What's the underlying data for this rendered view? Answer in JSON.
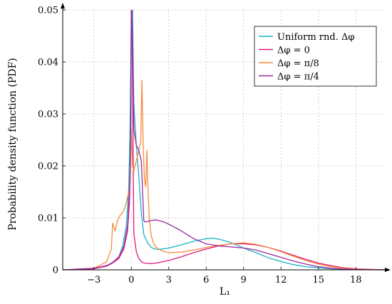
{
  "chart_data": {
    "type": "line",
    "xlabel": "L₁",
    "ylabel": "Probability density function (PDF)",
    "xlim": [
      -5.5,
      20.5
    ],
    "ylim": [
      0,
      0.05
    ],
    "xticks": [
      -3,
      0,
      3,
      6,
      9,
      12,
      15,
      18
    ],
    "xtick_labels": [
      "−3",
      "0",
      "3",
      "6",
      "9",
      "12",
      "15",
      "18"
    ],
    "yticks": [
      0,
      0.01,
      0.02,
      0.03,
      0.04,
      0.05
    ],
    "ytick_labels": [
      "0",
      "0.01",
      "0.02",
      "0.03",
      "0.04",
      "0.05"
    ],
    "grid": true,
    "legend_position": "top-right",
    "series": [
      {
        "name": "Uniform rnd. Δφ",
        "color": "#17b3c9",
        "x": [
          -5.5,
          -3,
          -2,
          -1.5,
          -1,
          -0.7,
          -0.4,
          -0.2,
          -0.1,
          0,
          0.1,
          0.2,
          0.4,
          0.6,
          0.8,
          1,
          1.3,
          1.6,
          2,
          2.5,
          3,
          4,
          5,
          6,
          6.5,
          7,
          7.5,
          8,
          9,
          10,
          11,
          12,
          13,
          14,
          15,
          16,
          17,
          18,
          19,
          20.5
        ],
        "y": [
          0,
          0.0002,
          0.0008,
          0.0014,
          0.0025,
          0.0045,
          0.0085,
          0.016,
          0.028,
          0.05,
          0.05,
          0.032,
          0.024,
          0.018,
          0.011,
          0.0068,
          0.0052,
          0.0043,
          0.0039,
          0.004,
          0.0042,
          0.0048,
          0.0055,
          0.006,
          0.0061,
          0.0059,
          0.0056,
          0.0052,
          0.0042,
          0.0033,
          0.0023,
          0.0016,
          0.001,
          0.0006,
          0.0004,
          0.0002,
          0.0001,
          5e-05,
          2e-05,
          0
        ]
      },
      {
        "name": "Δφ = 0",
        "color": "#e0157a",
        "x": [
          -5.5,
          -3,
          -2,
          -1.5,
          -1,
          -0.6,
          -0.3,
          -0.15,
          -0.05,
          0,
          0.05,
          0.2,
          0.4,
          0.6,
          0.8,
          1,
          1.5,
          2,
          3,
          4,
          5,
          6,
          7,
          8,
          9,
          10,
          11,
          12,
          13,
          14,
          15,
          16,
          17,
          18,
          19,
          20.5
        ],
        "y": [
          0,
          0.0002,
          0.0007,
          0.0013,
          0.0022,
          0.004,
          0.0075,
          0.013,
          0.022,
          0.05,
          0.05,
          0.007,
          0.0035,
          0.0022,
          0.0016,
          0.0013,
          0.0012,
          0.0013,
          0.0018,
          0.0025,
          0.0033,
          0.004,
          0.0046,
          0.005,
          0.005,
          0.0048,
          0.0043,
          0.0036,
          0.0028,
          0.002,
          0.0013,
          0.0008,
          0.0004,
          0.0002,
          0.0001,
          0
        ]
      },
      {
        "name": "Δφ = π/8",
        "color": "#f58a3c",
        "x": [
          -5.5,
          -3,
          -2,
          -1.6,
          -1.5,
          -1.3,
          -1.1,
          -0.9,
          -0.7,
          -0.5,
          -0.3,
          -0.1,
          0,
          0.1,
          0.2,
          0.4,
          0.6,
          0.75,
          0.85,
          0.95,
          1.05,
          1.15,
          1.25,
          1.35,
          1.45,
          1.6,
          1.8,
          2,
          2.5,
          3,
          4,
          5,
          6,
          7,
          8,
          9,
          10,
          11,
          12,
          13,
          14,
          15,
          16,
          17,
          18,
          19,
          20.5
        ],
        "y": [
          0,
          0.0003,
          0.0015,
          0.004,
          0.009,
          0.0075,
          0.0095,
          0.0105,
          0.011,
          0.012,
          0.014,
          0.016,
          0.027,
          0.02,
          0.019,
          0.021,
          0.023,
          0.0245,
          0.0365,
          0.024,
          0.0175,
          0.016,
          0.023,
          0.0145,
          0.0095,
          0.0065,
          0.005,
          0.0043,
          0.0036,
          0.0033,
          0.0034,
          0.0038,
          0.0043,
          0.0047,
          0.005,
          0.0052,
          0.0049,
          0.0043,
          0.0035,
          0.0026,
          0.0018,
          0.0011,
          0.0006,
          0.0003,
          0.00015,
          5e-05,
          0
        ]
      },
      {
        "name": "Δφ = π/4",
        "color": "#9b2aa0",
        "x": [
          -5.5,
          -3,
          -2,
          -1.5,
          -1,
          -0.6,
          -0.3,
          -0.15,
          -0.05,
          0,
          0.05,
          0.2,
          0.4,
          0.6,
          0.8,
          1,
          1.1,
          1.3,
          1.6,
          2,
          2.5,
          3,
          4,
          5,
          6,
          7,
          8,
          9,
          10,
          11,
          12,
          13,
          14,
          15,
          16,
          17,
          18,
          19,
          20.5
        ],
        "y": [
          0,
          0.0003,
          0.0008,
          0.0014,
          0.0025,
          0.0045,
          0.0085,
          0.015,
          0.025,
          0.05,
          0.05,
          0.027,
          0.024,
          0.023,
          0.021,
          0.0095,
          0.0092,
          0.0093,
          0.0095,
          0.0096,
          0.0093,
          0.0088,
          0.0075,
          0.006,
          0.005,
          0.0046,
          0.0044,
          0.0042,
          0.0038,
          0.0031,
          0.0024,
          0.0017,
          0.0011,
          0.0006,
          0.0003,
          0.00015,
          6e-05,
          2e-05,
          0
        ]
      }
    ]
  }
}
